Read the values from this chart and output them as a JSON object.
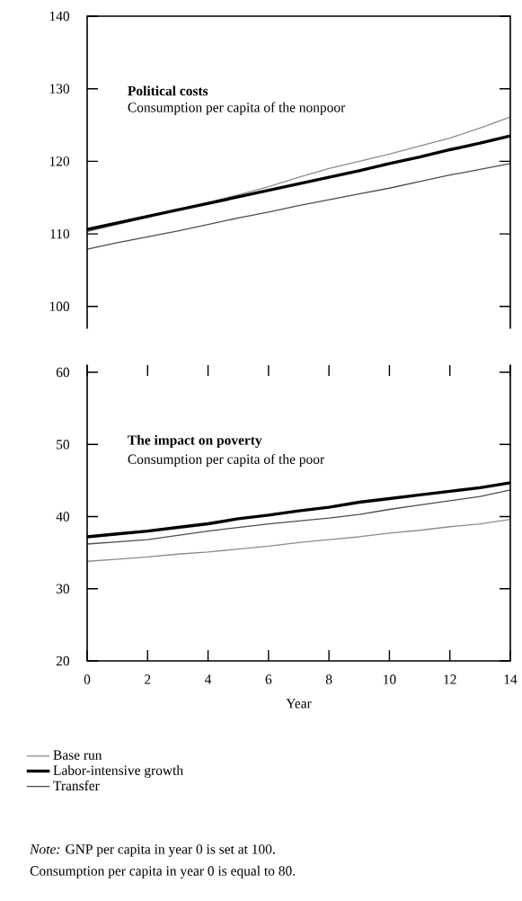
{
  "chart_data": [
    {
      "type": "line",
      "title": "Political costs",
      "subtitle": "Consumption per capita of the nonpoor",
      "x": [
        0,
        1,
        2,
        3,
        4,
        5,
        6,
        7,
        8,
        9,
        10,
        11,
        12,
        13,
        14
      ],
      "series": [
        {
          "color": "#8c8c8c",
          "values": [
            110.3,
            111.3,
            112.3,
            113.3,
            114.3,
            115.4,
            116.5,
            117.8,
            119.0,
            120.0,
            121.0,
            122.1,
            123.2,
            124.6,
            126.1
          ]
        },
        {
          "color": "#000000",
          "values": [
            110.6,
            111.5,
            112.4,
            113.3,
            114.2,
            115.1,
            116.0,
            116.9,
            117.8,
            118.7,
            119.7,
            120.6,
            121.6,
            122.5,
            123.5
          ]
        },
        {
          "color": "#4d4d4d",
          "values": [
            107.9,
            108.8,
            109.6,
            110.4,
            111.3,
            112.2,
            113.0,
            113.9,
            114.7,
            115.5,
            116.3,
            117.2,
            118.1,
            118.9,
            119.7
          ]
        }
      ],
      "xlim": [
        0,
        14
      ],
      "ylim": [
        97,
        140
      ],
      "yticks": [
        100,
        110,
        120,
        130,
        140
      ],
      "tick_labels": "y"
    },
    {
      "type": "line",
      "title": "The impact on poverty",
      "subtitle": "Consumption per capita of the poor",
      "xlabel": "Year",
      "x": [
        0,
        1,
        2,
        3,
        4,
        5,
        6,
        7,
        8,
        9,
        10,
        11,
        12,
        13,
        14
      ],
      "series": [
        {
          "name": "Base run",
          "color": "#8c8c8c",
          "values": [
            33.8,
            34.1,
            34.4,
            34.8,
            35.1,
            35.5,
            35.9,
            36.4,
            36.8,
            37.2,
            37.7,
            38.1,
            38.6,
            39.0,
            39.6
          ]
        },
        {
          "name": "Labor-intensive growth",
          "color": "#000000",
          "values": [
            37.2,
            37.6,
            38.0,
            38.5,
            39.0,
            39.7,
            40.2,
            40.8,
            41.3,
            42.0,
            42.5,
            43.0,
            43.5,
            44.0,
            44.7
          ]
        },
        {
          "name": "Transfer",
          "color": "#4d4d4d",
          "values": [
            36.2,
            36.5,
            36.8,
            37.4,
            38.0,
            38.5,
            39.0,
            39.4,
            39.8,
            40.3,
            41.0,
            41.6,
            42.2,
            42.8,
            43.7
          ]
        }
      ],
      "xlim": [
        0,
        14
      ],
      "ylim": [
        20,
        61
      ],
      "xticks": [
        0,
        2,
        4,
        6,
        8,
        10,
        12,
        14
      ],
      "yticks": [
        20,
        30,
        40,
        50,
        60
      ],
      "legend": "bottom",
      "annotations": [
        "*Note:*  GNP per capita in year 0 is set at 100.",
        "Consumption per capita in year 0 is equal to 80."
      ]
    }
  ]
}
